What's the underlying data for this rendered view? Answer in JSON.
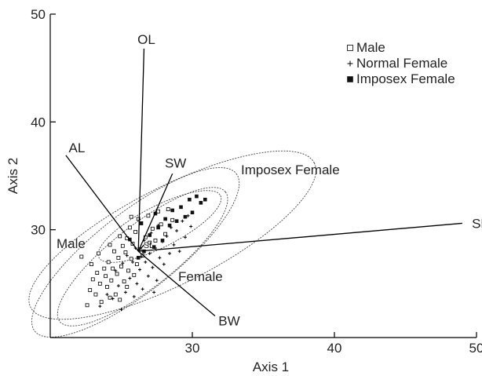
{
  "chart_data": {
    "type": "scatter",
    "xlabel": "Axis 1",
    "ylabel": "Axis 2",
    "xlim": [
      20,
      50
    ],
    "ylim": [
      20,
      50
    ],
    "xticks": [
      30,
      40,
      50
    ],
    "yticks": [
      30,
      40,
      50
    ],
    "grid": false,
    "legend_position": "top-right",
    "legend": [
      {
        "label": "Male",
        "marker": "open-square"
      },
      {
        "label": "Normal Female",
        "marker": "plus"
      },
      {
        "label": "Imposex Female",
        "marker": "filled-square"
      }
    ],
    "vectors": [
      {
        "name": "OL",
        "x": 26.6,
        "y": 46.8
      },
      {
        "name": "AL",
        "x": 21.1,
        "y": 36.9
      },
      {
        "name": "SW",
        "x": 28.6,
        "y": 35.2
      },
      {
        "name": "SD",
        "x": 49.0,
        "y": 30.6
      },
      {
        "name": "BW",
        "x": 31.6,
        "y": 22.0
      },
      {
        "name": "SL",
        "x": 26.6,
        "y": 28.6
      }
    ],
    "vector_origin": {
      "x": 26.2,
      "y": 28.0
    },
    "ellipses": [
      {
        "group": "Imposex Female",
        "label": "Imposex Female",
        "cx": 28.6,
        "cy": 29.5,
        "rx": 11.2,
        "ry": 4.5,
        "angle": 27
      },
      {
        "group": "Male",
        "label": "Male",
        "cx": 26.0,
        "cy": 27.9,
        "rx": 9.0,
        "ry": 3.7,
        "angle": 38
      },
      {
        "group": "Normal Female",
        "label": "Female",
        "cx": 26.5,
        "cy": 27.5,
        "rx": 7.4,
        "ry": 2.9,
        "angle": 38
      },
      {
        "group": "Imposex Female",
        "label": "",
        "cx": 27.7,
        "cy": 30.3,
        "rx": 4.8,
        "ry": 1.9,
        "angle": 27
      }
    ],
    "series": [
      {
        "name": "Male",
        "marker": "open-square",
        "points": [
          [
            22.2,
            27.5
          ],
          [
            22.6,
            23.0
          ],
          [
            22.8,
            24.4
          ],
          [
            23.0,
            25.4
          ],
          [
            23.2,
            24.0
          ],
          [
            23.3,
            26.0
          ],
          [
            23.5,
            25.0
          ],
          [
            23.6,
            23.3
          ],
          [
            23.8,
            26.4
          ],
          [
            23.9,
            25.7
          ],
          [
            24.0,
            24.7
          ],
          [
            24.1,
            27.0
          ],
          [
            24.2,
            23.7
          ],
          [
            24.3,
            25.3
          ],
          [
            24.4,
            26.4
          ],
          [
            24.5,
            28.0
          ],
          [
            24.6,
            24.0
          ],
          [
            24.7,
            25.9
          ],
          [
            24.8,
            27.4
          ],
          [
            24.9,
            23.5
          ],
          [
            25.0,
            26.6
          ],
          [
            25.1,
            28.5
          ],
          [
            25.2,
            25.2
          ],
          [
            25.3,
            27.9
          ],
          [
            25.4,
            29.2
          ],
          [
            25.4,
            24.7
          ],
          [
            25.5,
            26.2
          ],
          [
            25.6,
            30.2
          ],
          [
            25.7,
            27.3
          ],
          [
            25.8,
            28.7
          ],
          [
            25.9,
            25.8
          ],
          [
            26.0,
            29.8
          ],
          [
            26.1,
            26.8
          ],
          [
            26.2,
            31.0
          ],
          [
            26.3,
            28.2
          ],
          [
            26.4,
            30.6
          ],
          [
            26.5,
            27.6
          ],
          [
            26.7,
            29.3
          ],
          [
            26.9,
            31.3
          ],
          [
            27.0,
            28.8
          ],
          [
            27.2,
            30.1
          ],
          [
            27.4,
            29.0
          ],
          [
            27.6,
            31.7
          ],
          [
            27.8,
            30.5
          ],
          [
            28.1,
            29.6
          ],
          [
            28.3,
            31.9
          ],
          [
            28.6,
            30.9
          ],
          [
            24.2,
            28.6
          ],
          [
            24.9,
            29.4
          ],
          [
            25.7,
            31.2
          ],
          [
            23.4,
            27.8
          ],
          [
            22.9,
            26.8
          ]
        ]
      },
      {
        "name": "Normal Female",
        "marker": "plus",
        "points": [
          [
            23.5,
            22.9
          ],
          [
            24.0,
            24.0
          ],
          [
            24.4,
            23.6
          ],
          [
            24.8,
            24.8
          ],
          [
            25.0,
            22.6
          ],
          [
            25.3,
            24.2
          ],
          [
            25.6,
            25.5
          ],
          [
            25.9,
            23.8
          ],
          [
            26.1,
            25.0
          ],
          [
            26.3,
            26.3
          ],
          [
            26.5,
            24.5
          ],
          [
            26.7,
            27.0
          ],
          [
            26.9,
            25.7
          ],
          [
            27.0,
            27.8
          ],
          [
            27.2,
            26.5
          ],
          [
            27.4,
            28.3
          ],
          [
            27.5,
            25.3
          ],
          [
            27.7,
            27.4
          ],
          [
            27.9,
            28.9
          ],
          [
            28.0,
            26.8
          ],
          [
            28.2,
            29.4
          ],
          [
            28.4,
            27.8
          ],
          [
            28.5,
            30.2
          ],
          [
            28.7,
            28.6
          ],
          [
            28.9,
            29.9
          ],
          [
            29.1,
            28.0
          ],
          [
            29.3,
            30.8
          ],
          [
            29.5,
            29.3
          ],
          [
            29.7,
            31.3
          ],
          [
            29.9,
            30.3
          ],
          [
            25.4,
            27.6
          ],
          [
            26.0,
            28.3
          ],
          [
            26.6,
            29.0
          ],
          [
            27.1,
            29.7
          ],
          [
            27.6,
            30.4
          ],
          [
            24.6,
            26.2
          ],
          [
            25.1,
            26.9
          ],
          [
            25.8,
            27.0
          ],
          [
            26.4,
            27.5
          ],
          [
            27.3,
            24.2
          ]
        ]
      },
      {
        "name": "Imposex Female",
        "marker": "filled-square",
        "points": [
          [
            26.2,
            27.4
          ],
          [
            26.6,
            28.0
          ],
          [
            27.0,
            29.5
          ],
          [
            27.3,
            28.4
          ],
          [
            27.6,
            30.2
          ],
          [
            27.9,
            29.0
          ],
          [
            28.1,
            31.0
          ],
          [
            28.4,
            30.4
          ],
          [
            28.6,
            31.8
          ],
          [
            28.9,
            30.8
          ],
          [
            29.2,
            32.1
          ],
          [
            29.5,
            31.2
          ],
          [
            29.8,
            32.8
          ],
          [
            30.0,
            31.6
          ],
          [
            30.3,
            33.1
          ],
          [
            30.6,
            32.5
          ],
          [
            30.9,
            32.8
          ],
          [
            27.4,
            31.5
          ],
          [
            26.4,
            30.6
          ],
          [
            25.6,
            29.1
          ]
        ]
      }
    ]
  }
}
